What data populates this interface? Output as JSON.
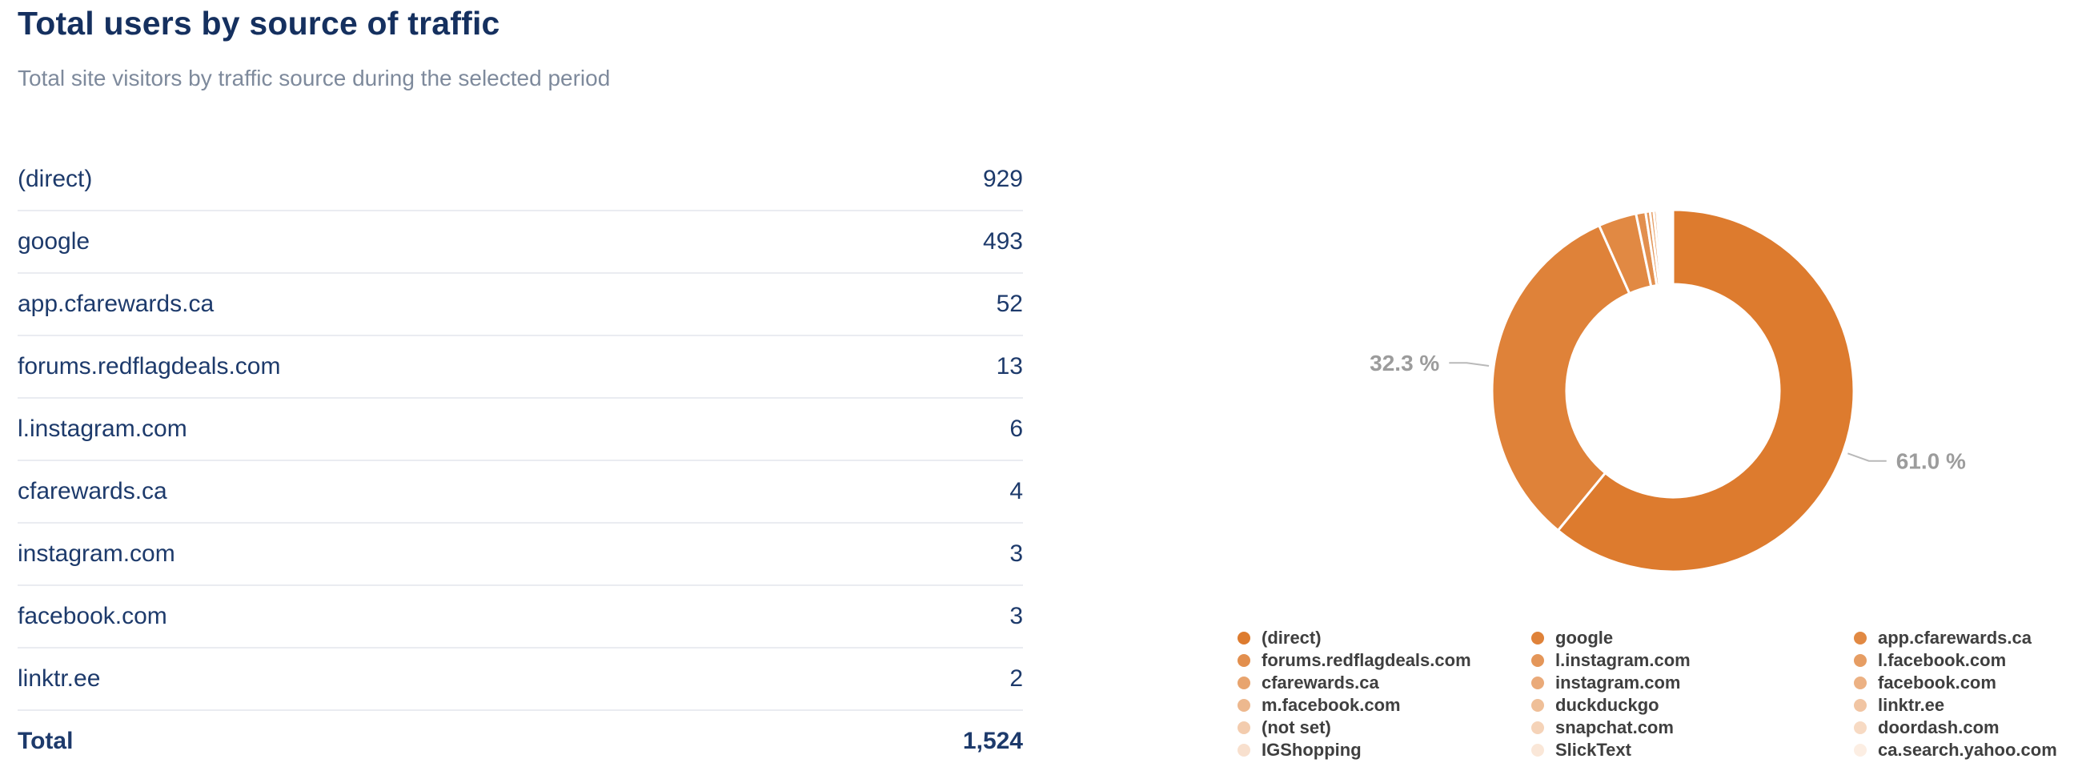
{
  "header": {
    "title": "Total users by source of traffic",
    "subtitle": "Total site visitors by traffic source during the selected period"
  },
  "table": {
    "rows": [
      {
        "label": "(direct)",
        "value": "929"
      },
      {
        "label": "google",
        "value": "493"
      },
      {
        "label": "app.cfarewards.ca",
        "value": "52"
      },
      {
        "label": "forums.redflagdeals.com",
        "value": "13"
      },
      {
        "label": "l.instagram.com",
        "value": "6"
      },
      {
        "label": "cfarewards.ca",
        "value": "4"
      },
      {
        "label": "instagram.com",
        "value": "3"
      },
      {
        "label": "facebook.com",
        "value": "3"
      },
      {
        "label": "linktr.ee",
        "value": "2"
      }
    ],
    "total_label": "Total",
    "total_value": "1,524"
  },
  "colors": {
    "title_navy": "#15305f",
    "table_navy": "#1d3a6b",
    "subtitle_gray": "#7e8a9c",
    "separator": "#eaecf1",
    "legend_text": "#3f3f3f",
    "percent_label_gray": "#9c9c9c",
    "label_line_gray": "#b9b9b9",
    "slice_border": "#ffffff"
  },
  "chart_data": {
    "type": "pie",
    "subtype": "donut",
    "title": "Total users by source of traffic",
    "categories": [
      "(direct)",
      "google",
      "app.cfarewards.ca",
      "forums.redflagdeals.com",
      "l.instagram.com",
      "l.facebook.com",
      "cfarewards.ca",
      "instagram.com",
      "facebook.com",
      "m.facebook.com",
      "duckduckgo",
      "linktr.ee",
      "(not set)",
      "snapchat.com",
      "doordash.com",
      "IGShopping",
      "SlickText",
      "ca.search.yahoo.com"
    ],
    "values": [
      929,
      493,
      52,
      13,
      6,
      5,
      4,
      3,
      3,
      3,
      2,
      2,
      2,
      2,
      2,
      1,
      1,
      1
    ],
    "total": 1524,
    "start_angle_deg_from_top": 0,
    "direction": "clockwise",
    "percent_labels": [
      {
        "index": 0,
        "text": "61.0 %"
      },
      {
        "index": 1,
        "text": "32.3 %"
      }
    ],
    "legend_position": "bottom-right",
    "palette": [
      "#dd7b2e",
      "#df8239",
      "#e18943",
      "#e28f4e",
      "#e49659",
      "#e69d63",
      "#e8a46e",
      "#eaaa79",
      "#ecb183",
      "#edb88e",
      "#efbf98",
      "#f1c5a3",
      "#f3ccae",
      "#f5d3b8",
      "#f7dac3",
      "#f8e0ce",
      "#fae7d8",
      "#fceee3"
    ]
  }
}
